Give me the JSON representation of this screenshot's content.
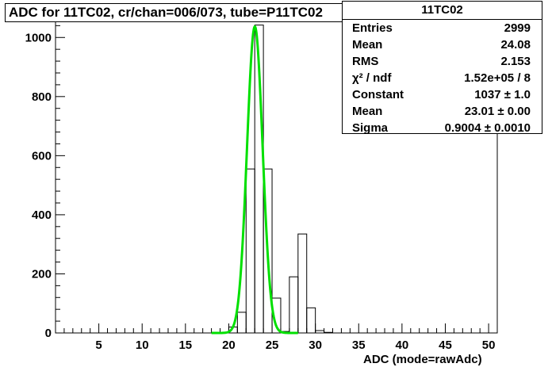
{
  "title": "ADC for 11TC02,  cr/chan=006/073,  tube=P11TC02",
  "stats": {
    "name": "11TC02",
    "rows": [
      {
        "label": "Entries",
        "value": "2999"
      },
      {
        "label": "Mean",
        "value": "24.08"
      },
      {
        "label": "RMS",
        "value": "2.153"
      },
      {
        "label": "χ² / ndf",
        "value": "1.52e+05 / 8"
      },
      {
        "label": "Constant",
        "value": "1037 ± 1.0"
      },
      {
        "label": "Mean",
        "value": "23.01 ± 0.00"
      },
      {
        "label": "Sigma",
        "value": "0.9004 ± 0.0010"
      }
    ]
  },
  "chart_data": {
    "type": "bar",
    "title": "ADC for 11TC02,  cr/chan=006/073,  tube=P11TC02",
    "xlabel": "ADC (mode=rawAdc)",
    "ylabel": "",
    "xlim": [
      0,
      51
    ],
    "ylim": [
      0,
      1100
    ],
    "xticks": [
      5,
      10,
      15,
      20,
      25,
      30,
      35,
      40,
      45,
      50
    ],
    "yticks": [
      0,
      200,
      400,
      600,
      800,
      1000
    ],
    "grid": false,
    "series": [
      {
        "bins": [
          {
            "x0": 20,
            "x1": 21,
            "y": 20
          },
          {
            "x0": 21,
            "x1": 22,
            "y": 70
          },
          {
            "x0": 22,
            "x1": 23,
            "y": 555
          },
          {
            "x0": 23,
            "x1": 24,
            "y": 1042
          },
          {
            "x0": 24,
            "x1": 25,
            "y": 555
          },
          {
            "x0": 25,
            "x1": 26,
            "y": 118
          },
          {
            "x0": 26,
            "x1": 27,
            "y": 5
          },
          {
            "x0": 27,
            "x1": 28,
            "y": 190
          },
          {
            "x0": 28,
            "x1": 29,
            "y": 335
          },
          {
            "x0": 29,
            "x1": 30,
            "y": 85
          },
          {
            "x0": 30,
            "x1": 31,
            "y": 8
          },
          {
            "x0": 31,
            "x1": 32,
            "y": 2
          }
        ],
        "color": "#000000"
      },
      {
        "fit": "gaus",
        "constant": 1037,
        "mean": 23.01,
        "sigma": 0.9004,
        "range": [
          18,
          28
        ],
        "color": "#00e000"
      }
    ]
  }
}
